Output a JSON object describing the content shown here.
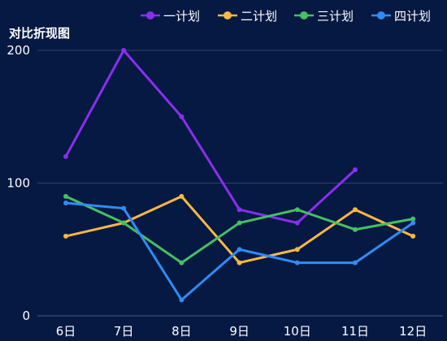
{
  "chart_data": {
    "type": "line",
    "title": "对比折现图",
    "categories": [
      "6日",
      "7日",
      "8日",
      "9日",
      "10日",
      "11日",
      "12日"
    ],
    "ylim": [
      0,
      200
    ],
    "yticks": [
      0,
      100,
      200
    ],
    "grid": true,
    "legend_position": "top-right",
    "series": [
      {
        "name": "一计划",
        "color": "#8a2ef0",
        "values": [
          120,
          200,
          150,
          80,
          70,
          110,
          null
        ]
      },
      {
        "name": "二计划",
        "color": "#f7b844",
        "values": [
          60,
          70,
          90,
          40,
          50,
          80,
          60
        ]
      },
      {
        "name": "三计划",
        "color": "#45c063",
        "values": [
          90,
          70,
          40,
          70,
          80,
          65,
          73
        ]
      },
      {
        "name": "四计划",
        "color": "#2f8cf6",
        "values": [
          85,
          81,
          12,
          50,
          40,
          40,
          70
        ]
      }
    ]
  }
}
